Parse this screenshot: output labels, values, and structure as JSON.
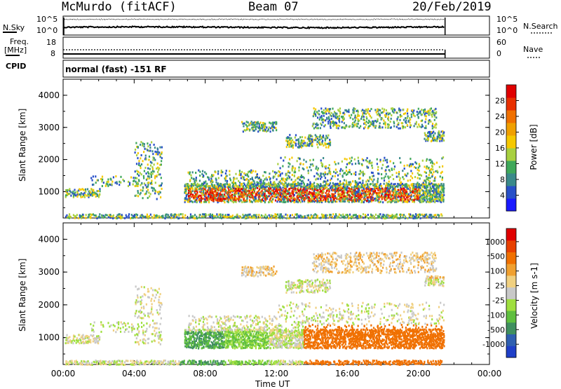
{
  "header": {
    "station": "McMurdo (fitACF)",
    "beam": "Beam 07",
    "date": "20/Feb/2019"
  },
  "noise_panel": {
    "left_label": "N.Sky",
    "left_ticks": [
      "10^5",
      "10^0"
    ],
    "right_ticks": [
      "10^5",
      "10^0"
    ],
    "right_label": "N.Search"
  },
  "freq_panel": {
    "left_label_1": "Freq.",
    "left_label_2": "[MHz]",
    "left_ticks": [
      "18",
      "8"
    ],
    "right_ticks": [
      "60",
      "0"
    ],
    "right_label": "Nave"
  },
  "cpid": {
    "label": "CPID",
    "value": "normal (fast) -151 RF"
  },
  "chart_data": [
    {
      "type": "heatmap",
      "title": "",
      "xlabel": "",
      "ylabel": "Slant Range [km]",
      "yticks": [
        "1000",
        "2000",
        "3000",
        "4000"
      ],
      "ylim": [
        180,
        4500
      ],
      "colorbar_label": "Power [dB]",
      "colorbar_ticks": [
        "4",
        "8",
        "12",
        "16",
        "20",
        "24",
        "28"
      ],
      "colorbar_colors": [
        "#1a1aff",
        "#2850c8",
        "#3a8a8a",
        "#3fa85a",
        "#a8d040",
        "#f5c800",
        "#f0a000",
        "#f07000",
        "#e83000",
        "#e00000"
      ]
    },
    {
      "type": "heatmap",
      "title": "",
      "xlabel": "Time UT",
      "ylabel": "Slant Range [km]",
      "yticks": [
        "1000",
        "2000",
        "3000",
        "4000"
      ],
      "ylim": [
        180,
        4500
      ],
      "colorbar_label": "Velocity [m s-1]",
      "colorbar_ticks": [
        "1000",
        "500",
        "100",
        "25",
        "-25",
        "-100",
        "-500",
        "-1000"
      ],
      "colorbar_colors": [
        "#1f3fc8",
        "#2f5fb0",
        "#3f8f5f",
        "#5fbf3f",
        "#9fdf3f",
        "#c8c8c8",
        "#f0d080",
        "#f0a030",
        "#f07000",
        "#e84000",
        "#e00000"
      ],
      "xticks": [
        "00:00",
        "04:00",
        "08:00",
        "12:00",
        "16:00",
        "20:00",
        "00:00"
      ]
    }
  ]
}
